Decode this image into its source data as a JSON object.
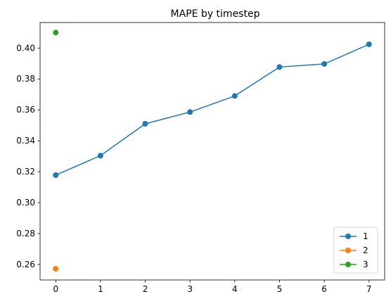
{
  "chart_data": {
    "type": "line",
    "title": "MAPE by timestep",
    "xlabel": "",
    "ylabel": "",
    "xlim": [
      -0.35,
      7.35
    ],
    "ylim": [
      0.25,
      0.4165
    ],
    "x_ticks": [
      0,
      1,
      2,
      3,
      4,
      5,
      6,
      7
    ],
    "y_ticks": [
      0.26,
      0.28,
      0.3,
      0.32,
      0.34,
      0.36,
      0.38,
      0.4
    ],
    "y_tick_labels": [
      "0.26",
      "0.28",
      "0.30",
      "0.32",
      "0.34",
      "0.36",
      "0.38",
      "0.40"
    ],
    "grid": false,
    "legend_position": "lower right",
    "series": [
      {
        "name": "1",
        "color": "#1f77b4",
        "x": [
          0,
          1,
          2,
          3,
          4,
          5,
          6,
          7
        ],
        "values": [
          0.3178,
          0.3304,
          0.351,
          0.3586,
          0.369,
          0.3877,
          0.3897,
          0.4024
        ]
      },
      {
        "name": "2",
        "color": "#ff7f0e",
        "x": [
          0
        ],
        "values": [
          0.2572
        ]
      },
      {
        "name": "3",
        "color": "#2ca02c",
        "x": [
          0
        ],
        "values": [
          0.41
        ]
      }
    ]
  }
}
